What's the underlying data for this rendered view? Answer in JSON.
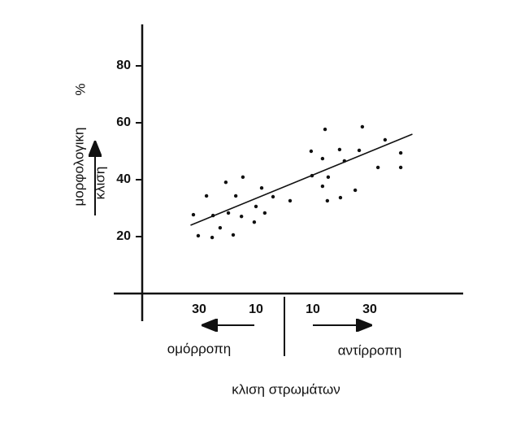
{
  "chart_data": {
    "type": "scatter",
    "y_label_lines": [
      "μορφολογικη",
      "κλιση"
    ],
    "y_unit": "%",
    "x_label": "κλιση στρωμάτων",
    "left_label": "ομόρροπη",
    "right_label": "αντίρροπη",
    "xlim": [
      -50,
      63
    ],
    "ylim": [
      0,
      95
    ],
    "xticks": [
      {
        "value": -30,
        "label": "30"
      },
      {
        "value": -10,
        "label": "10"
      },
      10,
      30
    ],
    "yticks": [
      20,
      40,
      60,
      80
    ],
    "color": "#111111",
    "x": [
      -32,
      -30.3,
      -27.4,
      -25.4,
      -25.1,
      -22.6,
      -20.6,
      -19.7,
      -18,
      -17.1,
      -15.1,
      -14.6,
      -10.6,
      -10,
      -8,
      -6.9,
      -4,
      2,
      9.4,
      9.7,
      13.4,
      14.3,
      13.4,
      15.1,
      15.4,
      19.4,
      19.7,
      21.1,
      24.9,
      26.3,
      27.4,
      32.9,
      35.4,
      40.9,
      40.9
    ],
    "y": [
      27.7,
      20.3,
      34.3,
      19.7,
      27.4,
      23.1,
      39.1,
      28.3,
      20.6,
      34.3,
      27.1,
      40.9,
      25.1,
      30.6,
      37.1,
      28.3,
      34,
      32.6,
      50,
      41.4,
      47.4,
      57.7,
      37.7,
      32.6,
      40.9,
      50.6,
      33.7,
      46.6,
      36.3,
      50.3,
      58.6,
      44.3,
      54,
      49.4,
      44.3
    ],
    "trend": {
      "x": [
        -33,
        45
      ],
      "y": [
        24,
        56
      ]
    }
  }
}
